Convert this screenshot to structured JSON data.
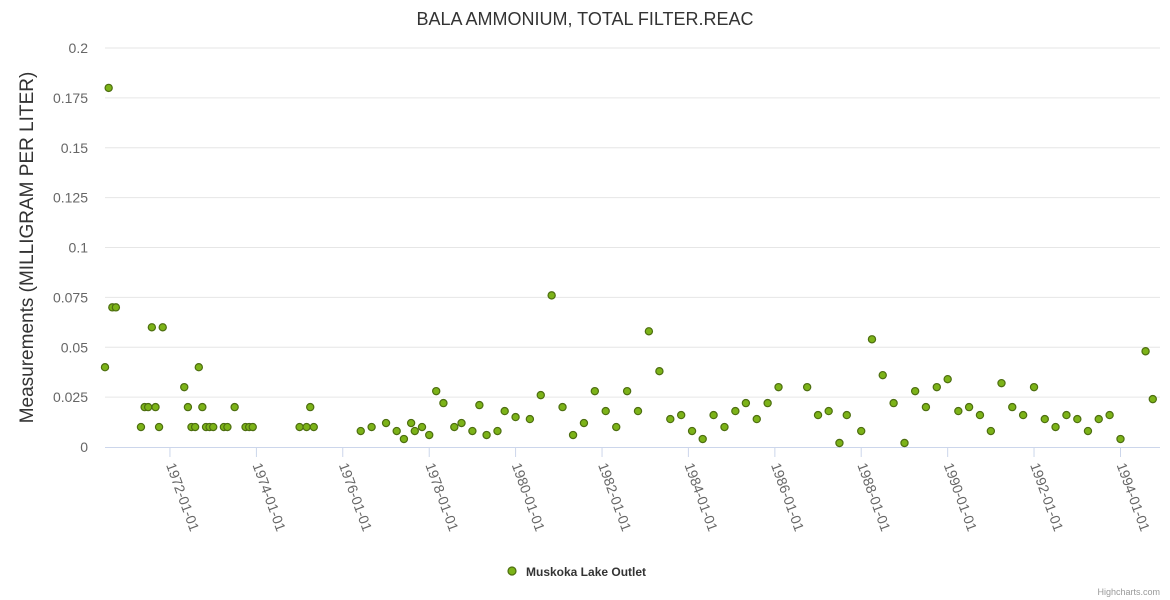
{
  "chart_data": {
    "type": "scatter",
    "title": "BALA AMMONIUM, TOTAL FILTER.REAC",
    "ylabel": "Measurements (MILLIGRAM PER LITER)",
    "xlabel": "",
    "ylim": [
      0,
      0.2
    ],
    "y_ticks": [
      "0",
      "0.025",
      "0.05",
      "0.075",
      "0.1",
      "0.125",
      "0.15",
      "0.175",
      "0.2"
    ],
    "x_ticks": [
      "1972-01-01",
      "1974-01-01",
      "1976-01-01",
      "1978-01-01",
      "1980-01-01",
      "1982-01-01",
      "1984-01-01",
      "1986-01-01",
      "1988-01-01",
      "1990-01-01",
      "1992-01-01",
      "1994-01-01"
    ],
    "xlim": [
      "1970-07-01",
      "1994-12-01"
    ],
    "grid": "horizontal",
    "legend": "bottom-center",
    "series": [
      {
        "name": "Muskoka Lake Outlet",
        "color": "#7cb318",
        "x": [
          "1970-07-01",
          "1970-08-01",
          "1970-09-01",
          "1970-10-01",
          "1971-05-01",
          "1971-06-01",
          "1971-07-01",
          "1971-08-01",
          "1971-09-01",
          "1971-10-01",
          "1971-11-01",
          "1972-05-01",
          "1972-06-01",
          "1972-07-01",
          "1972-08-01",
          "1972-09-01",
          "1972-10-01",
          "1972-11-01",
          "1972-12-01",
          "1973-01-01",
          "1973-04-01",
          "1973-05-01",
          "1973-07-01",
          "1973-10-01",
          "1973-11-01",
          "1973-12-01",
          "1975-01-01",
          "1975-03-01",
          "1975-04-01",
          "1975-05-01",
          "1976-06-01",
          "1976-09-01",
          "1977-01-01",
          "1977-04-01",
          "1977-06-01",
          "1977-08-01",
          "1977-09-01",
          "1977-11-01",
          "1978-01-01",
          "1978-03-01",
          "1978-05-01",
          "1978-08-01",
          "1978-10-01",
          "1979-01-01",
          "1979-03-01",
          "1979-05-01",
          "1979-08-01",
          "1979-10-01",
          "1980-01-01",
          "1980-05-01",
          "1980-08-01",
          "1980-11-01",
          "1981-02-01",
          "1981-05-01",
          "1981-08-01",
          "1981-11-01",
          "1982-02-01",
          "1982-05-01",
          "1982-08-01",
          "1982-11-01",
          "1983-02-01",
          "1983-05-01",
          "1983-08-01",
          "1983-11-01",
          "1984-02-01",
          "1984-05-01",
          "1984-08-01",
          "1984-11-01",
          "1985-02-01",
          "1985-05-01",
          "1985-08-01",
          "1985-11-01",
          "1986-02-01",
          "1986-10-01",
          "1987-01-01",
          "1987-04-01",
          "1987-07-01",
          "1987-09-01",
          "1988-01-01",
          "1988-04-01",
          "1988-07-01",
          "1988-10-01",
          "1989-01-01",
          "1989-04-01",
          "1989-07-01",
          "1989-10-01",
          "1990-01-01",
          "1990-04-01",
          "1990-07-01",
          "1990-10-01",
          "1991-01-01",
          "1991-04-01",
          "1991-07-01",
          "1991-10-01",
          "1992-01-01",
          "1992-04-01",
          "1992-07-01",
          "1992-10-01",
          "1993-01-01",
          "1993-04-01",
          "1993-07-01",
          "1993-10-01",
          "1994-01-01",
          "1994-08-01",
          "1994-10-01"
        ],
        "values": [
          0.04,
          0.18,
          0.07,
          0.07,
          0.01,
          0.02,
          0.02,
          0.06,
          0.02,
          0.01,
          0.06,
          0.03,
          0.02,
          0.01,
          0.01,
          0.04,
          0.02,
          0.01,
          0.01,
          0.01,
          0.01,
          0.01,
          0.02,
          0.01,
          0.01,
          0.01,
          0.01,
          0.01,
          0.02,
          0.01,
          0.008,
          0.01,
          0.012,
          0.008,
          0.004,
          0.012,
          0.008,
          0.01,
          0.006,
          0.028,
          0.022,
          0.01,
          0.012,
          0.008,
          0.021,
          0.006,
          0.008,
          0.018,
          0.015,
          0.014,
          0.026,
          0.076,
          0.02,
          0.006,
          0.012,
          0.028,
          0.018,
          0.01,
          0.028,
          0.018,
          0.058,
          0.038,
          0.014,
          0.016,
          0.008,
          0.004,
          0.016,
          0.01,
          0.018,
          0.022,
          0.014,
          0.022,
          0.03,
          0.03,
          0.016,
          0.018,
          0.002,
          0.016,
          0.008,
          0.054,
          0.036,
          0.022,
          0.002,
          0.028,
          0.02,
          0.03,
          0.034,
          0.018,
          0.02,
          0.016,
          0.008,
          0.032,
          0.02,
          0.016,
          0.03,
          0.014,
          0.01,
          0.016,
          0.014,
          0.008,
          0.014,
          0.016,
          0.004,
          0.048,
          0.024
        ]
      }
    ]
  },
  "credits": "Highcharts.com"
}
